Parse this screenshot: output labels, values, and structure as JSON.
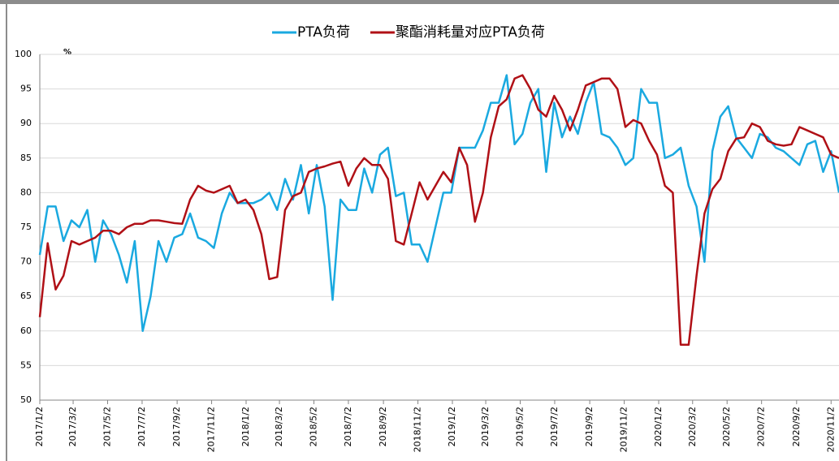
{
  "chart_data": {
    "type": "line",
    "ylabel": "%",
    "x": [
      "2017/1/2",
      "2017/1/16",
      "2017/1/30",
      "2017/2/13",
      "2017/2/27",
      "2017/3/13",
      "2017/3/27",
      "2017/4/10",
      "2017/4/24",
      "2017/5/8",
      "2017/5/22",
      "2017/6/5",
      "2017/6/19",
      "2017/7/3",
      "2017/7/17",
      "2017/7/31",
      "2017/8/14",
      "2017/8/28",
      "2017/9/11",
      "2017/9/25",
      "2017/10/9",
      "2017/10/23",
      "2017/11/6",
      "2017/11/20",
      "2017/12/4",
      "2017/12/18",
      "2018/1/1",
      "2018/1/15",
      "2018/1/29",
      "2018/2/12",
      "2018/2/26",
      "2018/3/12",
      "2018/3/26",
      "2018/4/9",
      "2018/4/23",
      "2018/5/7",
      "2018/5/21",
      "2018/6/4",
      "2018/6/18",
      "2018/7/2",
      "2018/7/16",
      "2018/7/30",
      "2018/8/13",
      "2018/8/27",
      "2018/9/10",
      "2018/9/24",
      "2018/10/8",
      "2018/10/22",
      "2018/11/5",
      "2018/11/19",
      "2018/12/3",
      "2018/12/17",
      "2018/12/31",
      "2019/1/14",
      "2019/1/28",
      "2019/2/11",
      "2019/2/25",
      "2019/3/11",
      "2019/3/25",
      "2019/4/8",
      "2019/4/22",
      "2019/5/6",
      "2019/5/20",
      "2019/6/3",
      "2019/6/17",
      "2019/7/1",
      "2019/7/15",
      "2019/7/29",
      "2019/8/12",
      "2019/8/26",
      "2019/9/9",
      "2019/9/23",
      "2019/10/7",
      "2019/10/21",
      "2019/11/4",
      "2019/11/18",
      "2019/12/2",
      "2019/12/16",
      "2019/12/30",
      "2020/1/13",
      "2020/1/27",
      "2020/2/10",
      "2020/2/24",
      "2020/3/9",
      "2020/3/23",
      "2020/4/6",
      "2020/4/20",
      "2020/5/4",
      "2020/5/18",
      "2020/6/1",
      "2020/6/15",
      "2020/6/29",
      "2020/7/13",
      "2020/7/27",
      "2020/8/10",
      "2020/8/24",
      "2020/9/7",
      "2020/9/21",
      "2020/10/5",
      "2020/10/19",
      "2020/11/2",
      "2020/11/16"
    ],
    "series": [
      {
        "name": "PTA负荷",
        "color": "#1aa9e0",
        "values": [
          71,
          78,
          78,
          73,
          76,
          75,
          77.5,
          70,
          76,
          74,
          71,
          67,
          73,
          60,
          65,
          73,
          70,
          73.5,
          74,
          77,
          73.5,
          73,
          72,
          77,
          80,
          78.5,
          78.5,
          78.5,
          79,
          80,
          77.5,
          82,
          79,
          84,
          77,
          84,
          78,
          64.5,
          79,
          77.5,
          77.5,
          83.5,
          80,
          85.5,
          86.5,
          79.5,
          80,
          72.5,
          72.5,
          70,
          75,
          80,
          80,
          86.5,
          86.5,
          86.5,
          89,
          93,
          93,
          97,
          87,
          88.5,
          93,
          95,
          83,
          93,
          88,
          91,
          88.5,
          93,
          96,
          88.5,
          88,
          86.5,
          84,
          85,
          95,
          93,
          93,
          85,
          85.5,
          86.5,
          81,
          78,
          70,
          86,
          91,
          92.5,
          88,
          86.5,
          85,
          88.5,
          88,
          86.5,
          86,
          85,
          84,
          87,
          87.5,
          83,
          86,
          80
        ]
      },
      {
        "name": "聚酯消耗量对应PTA负荷",
        "color": "#b01016",
        "values": [
          62,
          72.7,
          66,
          68,
          73,
          72.5,
          73,
          73.5,
          74.5,
          74.5,
          74,
          75,
          75.5,
          75.5,
          76,
          76,
          75.8,
          75.6,
          75.5,
          79,
          81,
          80.3,
          80,
          80.5,
          81,
          78.5,
          79,
          77.5,
          74,
          67.5,
          67.8,
          77.5,
          79.5,
          80,
          83,
          83.5,
          83.8,
          84.2,
          84.5,
          81,
          83.5,
          85,
          84,
          84,
          82,
          73,
          72.5,
          77,
          81.5,
          79,
          81,
          83,
          81.5,
          86.5,
          84,
          75.8,
          80,
          88,
          92.5,
          93.5,
          96.5,
          97,
          95,
          92,
          91,
          94,
          92,
          89,
          92,
          95.5,
          96,
          96.5,
          96.5,
          95,
          89.5,
          90.5,
          90,
          87.5,
          85.5,
          81,
          80,
          58,
          58,
          68,
          77,
          80.5,
          82,
          86,
          87.8,
          88,
          90,
          89.5,
          87.5,
          87,
          86.8,
          87,
          89.5,
          89,
          88.5,
          88,
          85.5,
          85
        ]
      }
    ],
    "xlim": [
      "2017/1/2",
      "2020/11/16"
    ],
    "xticks": [
      "2017/1/2",
      "2017/3/2",
      "2017/5/2",
      "2017/7/2",
      "2017/9/2",
      "2017/11/2",
      "2018/1/2",
      "2018/3/2",
      "2018/5/2",
      "2018/7/2",
      "2018/9/2",
      "2018/11/2",
      "2019/1/2",
      "2019/3/2",
      "2019/5/2",
      "2019/7/2",
      "2019/9/2",
      "2019/11/2",
      "2020/1/2",
      "2020/3/2",
      "2020/5/2",
      "2020/7/2",
      "2020/9/2",
      "2020/11/2"
    ],
    "ylim": [
      50,
      100
    ],
    "yticks": [
      50,
      55,
      60,
      65,
      70,
      75,
      80,
      85,
      90,
      95,
      100
    ],
    "grid": true
  }
}
